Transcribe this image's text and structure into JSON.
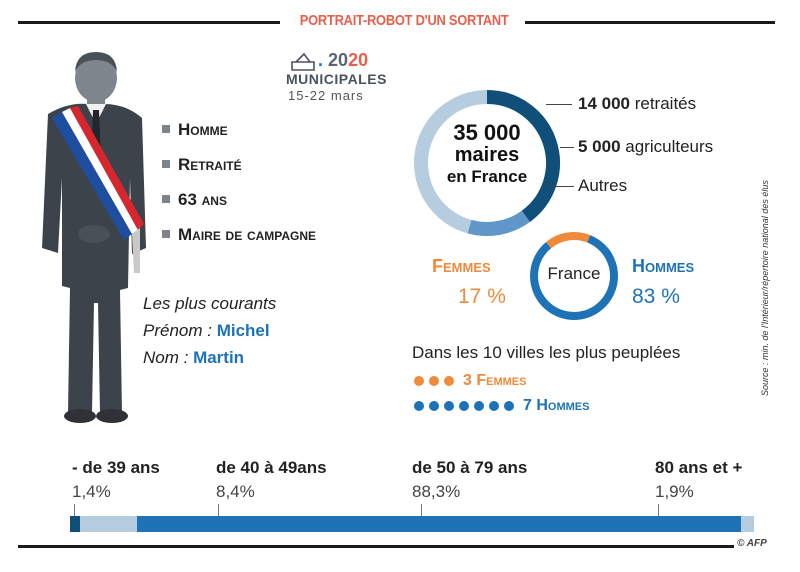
{
  "header": {
    "title": "PORTRAIT-ROBOT D'UN SORTANT"
  },
  "logo": {
    "year_prefix": ".",
    "year_main": "20",
    "year_hl": "20",
    "subtitle": "MUNICIPALES",
    "dates": "15-22 mars"
  },
  "profile": {
    "items": [
      {
        "label": "Homme"
      },
      {
        "label": "Retraité"
      },
      {
        "label": "63 ans"
      },
      {
        "label": "Maire de campagne"
      }
    ]
  },
  "courants": {
    "title": "Les plus courants",
    "prenom_label": "Prénom  : ",
    "prenom_value": "Michel",
    "nom_label": "Nom : ",
    "nom_value": "Martin"
  },
  "mayors": {
    "total_line1": "35 000",
    "total_line2": "maires",
    "total_line3": "en France",
    "legend": [
      {
        "value": "14 000",
        "label": " retraités"
      },
      {
        "value": "5 000",
        "label": " agriculteurs"
      },
      {
        "value": "",
        "label": "Autres"
      }
    ]
  },
  "gender": {
    "center": "France",
    "femmes_label": "Femmes",
    "femmes_pct": "17 %",
    "hommes_label": "Hommes",
    "hommes_pct": "83 %"
  },
  "villes": {
    "title": "Dans les 10 villes les plus peuplées",
    "femmes": "3 Femmes",
    "hommes": "7 Hommes"
  },
  "source": "Source : min. de l'Intérieur/répertoire national des élus",
  "ages": [
    {
      "label": "- de 39 ans",
      "value": "1,4%"
    },
    {
      "label": "de 40 à 49ans",
      "value": "8,4%"
    },
    {
      "label": "de 50 à 79 ans",
      "value": "88,3%"
    },
    {
      "label": "80 ans et +",
      "value": "1,9%"
    }
  ],
  "credit": "© AFP",
  "chart_data": [
    {
      "type": "pie",
      "title": "35 000 maires en France",
      "categories": [
        "retraités",
        "agriculteurs",
        "Autres"
      ],
      "values": [
        14000,
        5000,
        16000
      ]
    },
    {
      "type": "pie",
      "title": "France",
      "categories": [
        "Femmes",
        "Hommes"
      ],
      "values": [
        17,
        83
      ]
    },
    {
      "type": "bar",
      "categories": [
        "- de 39 ans",
        "de 40 à 49ans",
        "de 50 à 79 ans",
        "80 ans et +"
      ],
      "values": [
        1.4,
        8.4,
        88.3,
        1.9
      ]
    }
  ],
  "colors": {
    "accent_orange": "#ef8a3a",
    "accent_blue": "#1e73b7",
    "dark_blue": "#0f4f7a",
    "light_blue": "#b6cde0",
    "title_red": "#e8604c"
  }
}
